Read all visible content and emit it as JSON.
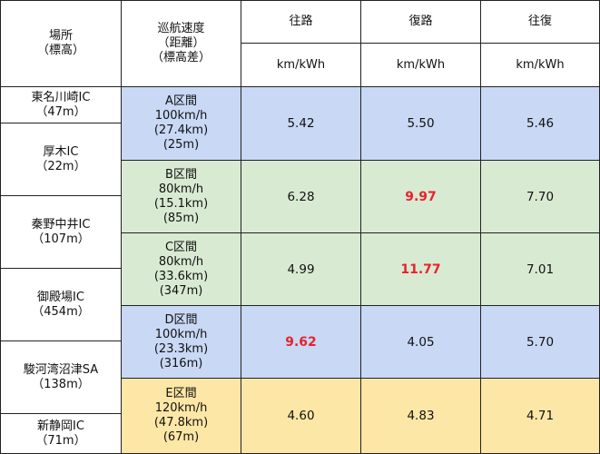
{
  "header": {
    "location": [
      "場所",
      "（標高）"
    ],
    "cruise": [
      "巡航速度",
      "（距離）",
      "（標高差）"
    ],
    "columns": [
      "往路",
      "復路",
      "往復"
    ],
    "unit": [
      "km/kWh",
      "km/kWh",
      "km/kWh"
    ]
  },
  "locations": [
    {
      "name": "東名川崎IC",
      "elevation": "（47m）"
    },
    {
      "name": "厚木IC",
      "elevation": "（22m）"
    },
    {
      "name": "秦野中井IC",
      "elevation": "（107m）"
    },
    {
      "name": "御殿場IC",
      "elevation": "（454m）"
    },
    {
      "name": "駿河湾沼津SA",
      "elevation": "（138m）"
    },
    {
      "name": "新静岡IC",
      "elevation": "（71m）"
    }
  ],
  "sections": [
    {
      "lines": [
        "A区間",
        "100km/h",
        "(27.4km)",
        "(25m)"
      ],
      "values": [
        "5.42",
        "5.50",
        "5.46"
      ],
      "highlight": null,
      "color": "#c9d8f5"
    },
    {
      "lines": [
        "B区間",
        "80km/h",
        "(15.1km)",
        "(85m)"
      ],
      "values": [
        "6.28",
        "9.97",
        "7.70"
      ],
      "highlight": 1,
      "color": "#d9ead3"
    },
    {
      "lines": [
        "C区間",
        "80km/h",
        "(33.6km)",
        "(347m)"
      ],
      "values": [
        "4.99",
        "11.77",
        "7.01"
      ],
      "highlight": 1,
      "color": "#d9ead3"
    },
    {
      "lines": [
        "D区間",
        "100km/h",
        "(23.3km)",
        "(316m)"
      ],
      "values": [
        "9.62",
        "4.05",
        "5.70"
      ],
      "highlight": 0,
      "color": "#c9d8f5"
    },
    {
      "lines": [
        "E区間",
        "120km/h",
        "(47.8km)",
        "(67m)"
      ],
      "values": [
        "4.60",
        "4.83",
        "4.71"
      ],
      "highlight": null,
      "color": "#fde7a6"
    }
  ],
  "highlight_color": "#e8232b"
}
